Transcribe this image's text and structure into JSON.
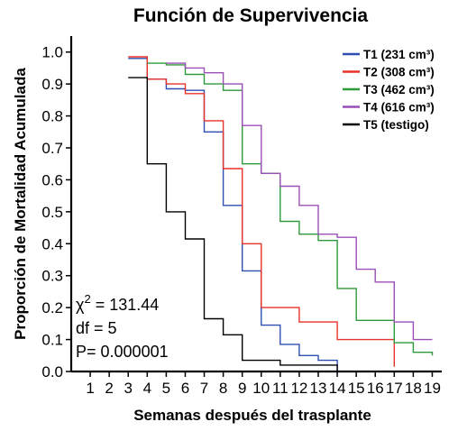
{
  "chart_data": {
    "type": "line",
    "title": "Función de Supervivencia",
    "xlabel": "Semanas después del trasplante",
    "ylabel": "Proporción de Mortalidad Acumulada",
    "x_ticks": [
      1,
      2,
      3,
      4,
      5,
      6,
      7,
      8,
      9,
      10,
      11,
      12,
      13,
      14,
      15,
      16,
      17,
      18,
      19
    ],
    "y_ticks": [
      "0.0",
      "0.1",
      "0.2",
      "0.3",
      "0.4",
      "0.5",
      "0.6",
      "0.7",
      "0.8",
      "0.9",
      "1.0"
    ],
    "xlim": [
      0,
      19.5
    ],
    "ylim": [
      0,
      1.05
    ],
    "grid": false,
    "legend_position": "top-right",
    "series": [
      {
        "name": "T1 (231 cm³)",
        "color": "#2f4fb0",
        "x": [
          3,
          4,
          5,
          6,
          7,
          8,
          9,
          10,
          11,
          12,
          13,
          14
        ],
        "y": [
          0.98,
          0.915,
          0.885,
          0.88,
          0.75,
          0.52,
          0.315,
          0.145,
          0.085,
          0.05,
          0.035,
          0.0
        ]
      },
      {
        "name": "T2 (308 cm³)",
        "color": "#e8322a",
        "x": [
          3,
          4,
          5,
          6,
          7,
          8,
          9,
          10,
          12,
          14,
          17
        ],
        "y": [
          0.985,
          0.915,
          0.9,
          0.87,
          0.785,
          0.635,
          0.4,
          0.2,
          0.155,
          0.1,
          0.015
        ]
      },
      {
        "name": "T3 (462 cm³)",
        "color": "#2e9a3a",
        "x": [
          4,
          5,
          6,
          7,
          8,
          9,
          10,
          11,
          12,
          13,
          14,
          15,
          17,
          18,
          19
        ],
        "y": [
          0.965,
          0.96,
          0.93,
          0.9,
          0.88,
          0.65,
          0.62,
          0.47,
          0.43,
          0.41,
          0.26,
          0.16,
          0.09,
          0.06,
          0.05
        ]
      },
      {
        "name": "T4 (616 cm³)",
        "color": "#9b4fb8",
        "x": [
          5,
          6,
          7,
          8,
          9,
          10,
          11,
          12,
          13,
          14,
          15,
          16,
          17,
          18,
          19
        ],
        "y": [
          0.965,
          0.95,
          0.935,
          0.9,
          0.77,
          0.62,
          0.58,
          0.52,
          0.43,
          0.42,
          0.32,
          0.28,
          0.155,
          0.1,
          0.1
        ]
      },
      {
        "name": "T5 (testigo)",
        "color": "#000000",
        "x": [
          3,
          4,
          5,
          6,
          7,
          8,
          9,
          10,
          11,
          14
        ],
        "y": [
          0.92,
          0.65,
          0.5,
          0.415,
          0.165,
          0.115,
          0.035,
          0.035,
          0.02,
          0.0
        ]
      }
    ],
    "annotations": {
      "chi_prefix": "χ",
      "chi_sup": "2",
      "chi_value": " = 131.44",
      "df": "df = 5",
      "p": "P= 0.000001"
    }
  }
}
